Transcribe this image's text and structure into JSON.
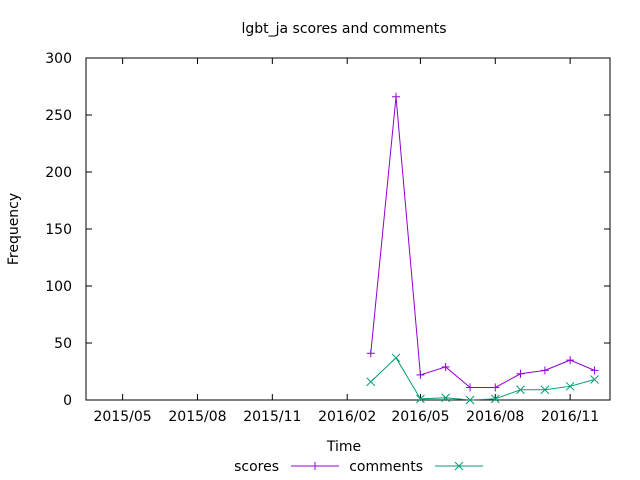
{
  "chart_data": {
    "type": "line",
    "title": "lgbt_ja scores and comments",
    "xlabel": "Time",
    "ylabel": "Frequency",
    "xlim": [
      "2015-03-17",
      "2016-12-20"
    ],
    "ylim": [
      0,
      300
    ],
    "yticks": [
      0,
      50,
      100,
      150,
      200,
      250,
      300
    ],
    "xticks": [
      {
        "date": "2015-05-01",
        "label": "2015/05"
      },
      {
        "date": "2015-08-01",
        "label": "2015/08"
      },
      {
        "date": "2015-11-01",
        "label": "2015/11"
      },
      {
        "date": "2016-02-01",
        "label": "2016/02"
      },
      {
        "date": "2016-05-01",
        "label": "2016/05"
      },
      {
        "date": "2016-08-01",
        "label": "2016/08"
      },
      {
        "date": "2016-11-01",
        "label": "2016/11"
      }
    ],
    "x": [
      "2016-03-01",
      "2016-04-01",
      "2016-05-01",
      "2016-06-01",
      "2016-07-01",
      "2016-08-01",
      "2016-09-01",
      "2016-10-01",
      "2016-11-01",
      "2016-12-01"
    ],
    "series": [
      {
        "name": "scores",
        "color": "#9400d3",
        "marker": "plus",
        "values": [
          41,
          266,
          22,
          29,
          11,
          11,
          23,
          26,
          35,
          26
        ]
      },
      {
        "name": "comments",
        "color": "#009e73",
        "marker": "cross",
        "values": [
          16,
          37,
          1,
          2,
          0,
          1,
          9,
          9,
          12,
          18
        ]
      }
    ],
    "grid": false,
    "legend": "bottom-center"
  }
}
